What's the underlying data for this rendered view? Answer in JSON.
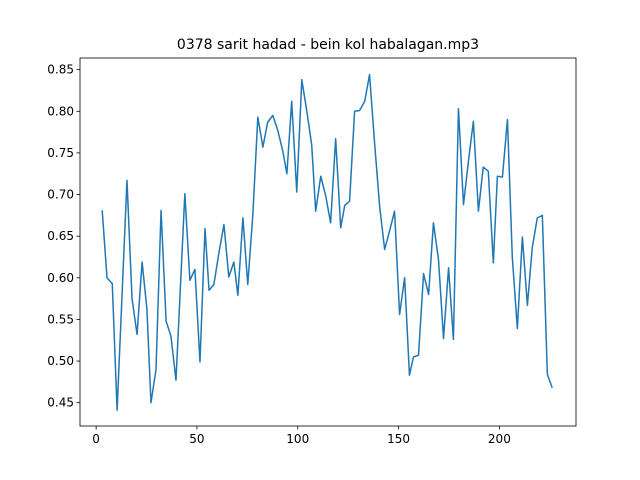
{
  "chart_data": {
    "type": "line",
    "title": "0378 sarit hadad - bein kol habalagan.mp3",
    "color": "#1f77b4",
    "x": [
      3,
      5.4,
      8,
      10.4,
      15.3,
      17.8,
      20.3,
      22.8,
      25.2,
      27.2,
      29.7,
      32.2,
      34.7,
      37.1,
      39.6,
      44,
      46.5,
      49,
      51.5,
      54,
      56,
      58.4,
      60.9,
      63.4,
      65.8,
      68.3,
      70.3,
      72.8,
      75.2,
      77.7,
      80.2,
      82.7,
      85.1,
      87.6,
      90.1,
      92.6,
      94.6,
      97,
      99.5,
      102,
      104.5,
      106.9,
      108.9,
      111.4,
      113.9,
      116.3,
      118.8,
      121.3,
      123.3,
      125.7,
      128.2,
      130.7,
      133.2,
      135.6,
      138.1,
      140.6,
      143.1,
      145.5,
      148,
      150.5,
      153,
      155.4,
      157.4,
      159.9,
      162.4,
      164.9,
      167.3,
      169.8,
      172.3,
      174.8,
      177.2,
      179.7,
      182.2,
      184.7,
      187.1,
      189.6,
      192,
      194.5,
      197,
      199,
      201.5,
      204,
      206.4,
      208.9,
      211.4,
      213.9,
      216.3,
      218.8,
      221.3,
      223.8,
      226.2
    ],
    "values": [
      0.681,
      0.6,
      0.593,
      0.441,
      0.717,
      0.575,
      0.532,
      0.619,
      0.562,
      0.45,
      0.49,
      0.681,
      0.548,
      0.53,
      0.477,
      0.701,
      0.597,
      0.61,
      0.499,
      0.659,
      0.585,
      0.592,
      0.63,
      0.664,
      0.601,
      0.619,
      0.579,
      0.672,
      0.592,
      0.675,
      0.793,
      0.757,
      0.787,
      0.795,
      0.777,
      0.752,
      0.725,
      0.812,
      0.703,
      0.838,
      0.8,
      0.76,
      0.68,
      0.722,
      0.698,
      0.666,
      0.767,
      0.66,
      0.687,
      0.692,
      0.8,
      0.801,
      0.812,
      0.844,
      0.762,
      0.686,
      0.634,
      0.656,
      0.68,
      0.556,
      0.6,
      0.483,
      0.505,
      0.507,
      0.605,
      0.58,
      0.666,
      0.622,
      0.527,
      0.612,
      0.526,
      0.803,
      0.688,
      0.741,
      0.788,
      0.68,
      0.733,
      0.728,
      0.618,
      0.722,
      0.721,
      0.79,
      0.625,
      0.539,
      0.649,
      0.567,
      0.636,
      0.672,
      0.675,
      0.484,
      0.468
    ],
    "xlim": [
      -8,
      238
    ],
    "xticks": [
      0,
      50,
      100,
      150,
      200
    ],
    "ylim": [
      0.422,
      0.864
    ],
    "yticks": [
      0.45,
      {
        "value": 0.5,
        "label": "0.50"
      },
      0.55,
      {
        "value": 0.6,
        "label": "0.60"
      },
      0.65,
      {
        "value": 0.7,
        "label": "0.70"
      },
      0.75,
      {
        "value": 0.8,
        "label": "0.80"
      },
      0.85
    ]
  }
}
